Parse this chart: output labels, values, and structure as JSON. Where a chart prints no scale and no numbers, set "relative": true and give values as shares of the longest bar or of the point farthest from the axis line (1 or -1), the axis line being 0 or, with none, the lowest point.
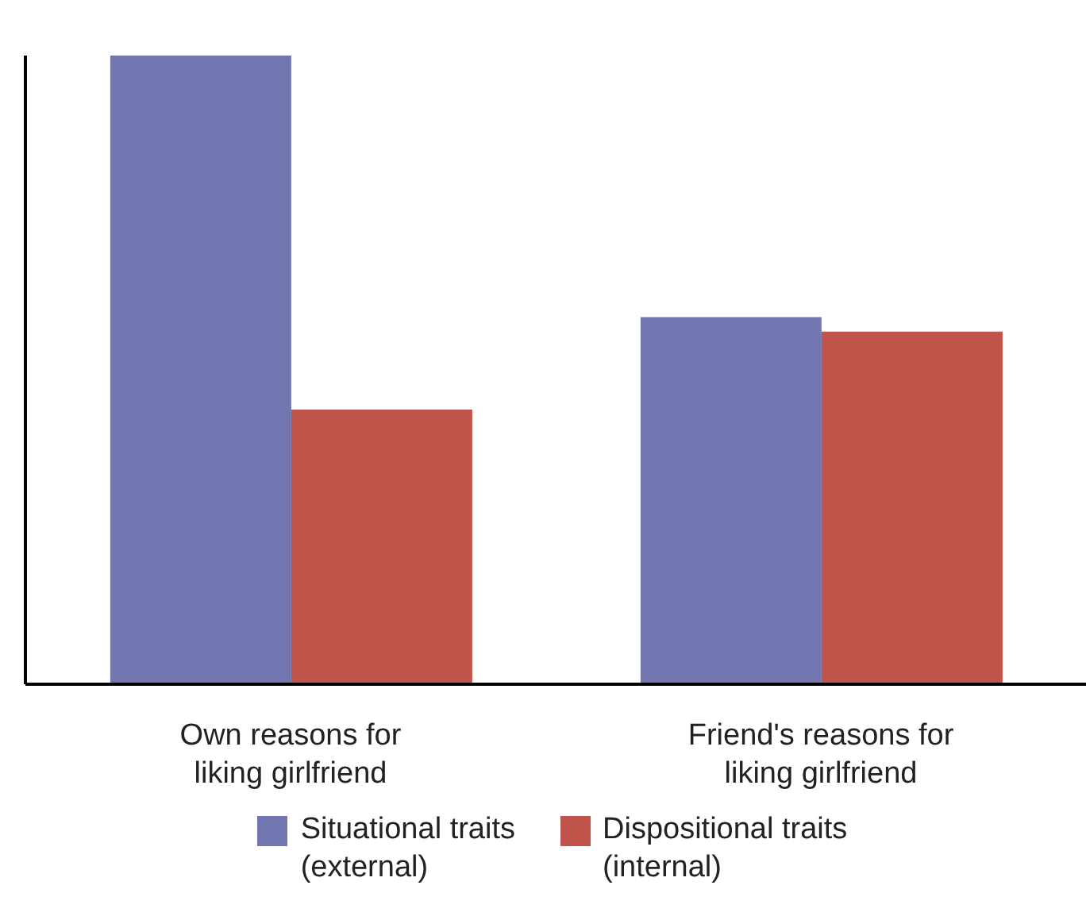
{
  "chart_data": {
    "type": "bar",
    "relative": true,
    "categories": [
      "Own reasons for\nliking girlfriend",
      "Friend's reasons for\nliking girlfriend"
    ],
    "series": [
      {
        "name": "Situational traits\n(external)",
        "color": "#7277b1",
        "values": [
          1,
          0.584
        ]
      },
      {
        "name": "Dispositional traits\n(internal)",
        "color": "#c0544a",
        "values": [
          0.437,
          0.561
        ]
      }
    ],
    "legend": "bottom",
    "grid": false
  }
}
